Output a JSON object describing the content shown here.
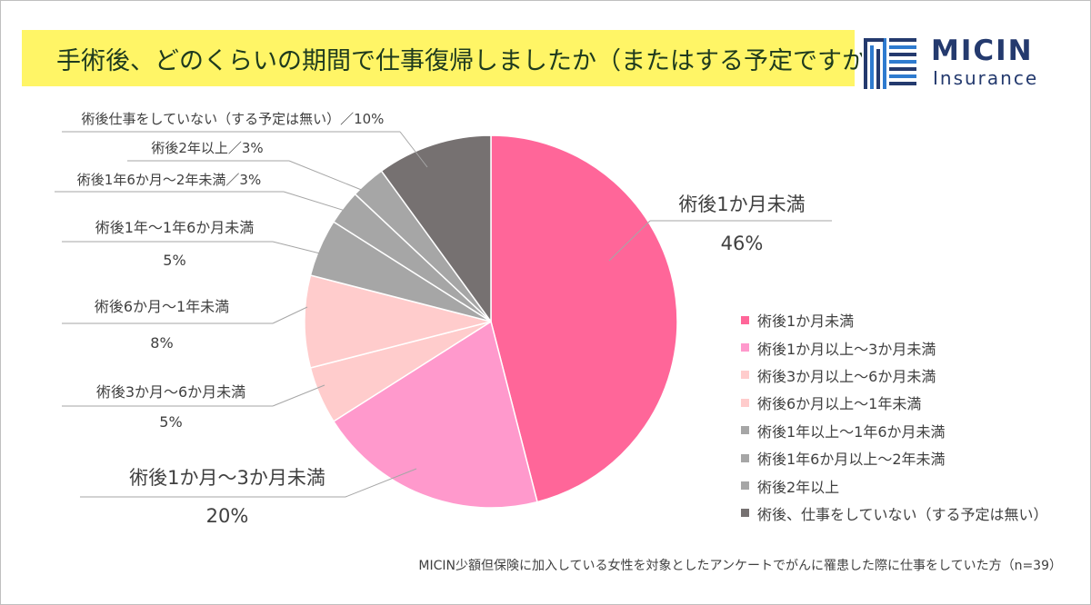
{
  "title": "手術後、どのくらいの期間で仕事復帰しましたか（またはする予定ですか）",
  "logo": {
    "line1": "MICIN",
    "line2": "Insurance",
    "color": "#243a6e"
  },
  "footnote": "MICIN少額但保険に加入している女性を対象としたアンケートでがんに罹患した際に仕事をしていた方（n=39）",
  "chart_data": {
    "type": "pie",
    "title": "手術後、どのくらいの期間で仕事復帰しましたか（またはする予定ですか）",
    "start": "12 o'clock",
    "direction": "clockwise",
    "slices": [
      {
        "legend": "術後1か月未満",
        "label": "術後1か月未満",
        "pct_label": "46%",
        "value": 46,
        "color": "#ff6699"
      },
      {
        "legend": "術後1か月以上〜3か月未満",
        "label": "術後1か月〜3か月未満",
        "pct_label": "20%",
        "value": 20,
        "color": "#ff99cc"
      },
      {
        "legend": "術後3か月以上〜6か月未満",
        "label": "術後3か月〜6か月未満",
        "pct_label": "5%",
        "value": 5,
        "color": "#ffcccc"
      },
      {
        "legend": "術後6か月以上〜1年未満",
        "label": "術後6か月〜1年未満",
        "pct_label": "8%",
        "value": 8,
        "color": "#ffcccc"
      },
      {
        "legend": "術後1年以上〜1年6か月未満",
        "label": "術後1年〜1年6か月未満",
        "pct_label": "5%",
        "value": 5,
        "color": "#a6a6a6"
      },
      {
        "legend": "術後1年6か月以上〜2年未満",
        "label": "術後1年6か月〜2年未満／3%",
        "pct_label": "",
        "value": 3,
        "color": "#a6a6a6"
      },
      {
        "legend": "術後2年以上",
        "label": "術後2年以上／3%",
        "pct_label": "",
        "value": 3,
        "color": "#a6a6a6"
      },
      {
        "legend": "術後、仕事をしていない（する予定は無い）",
        "label": "術後仕事をしていない（する予定は無い）／10%",
        "pct_label": "",
        "value": 10,
        "color": "#767171"
      }
    ]
  }
}
